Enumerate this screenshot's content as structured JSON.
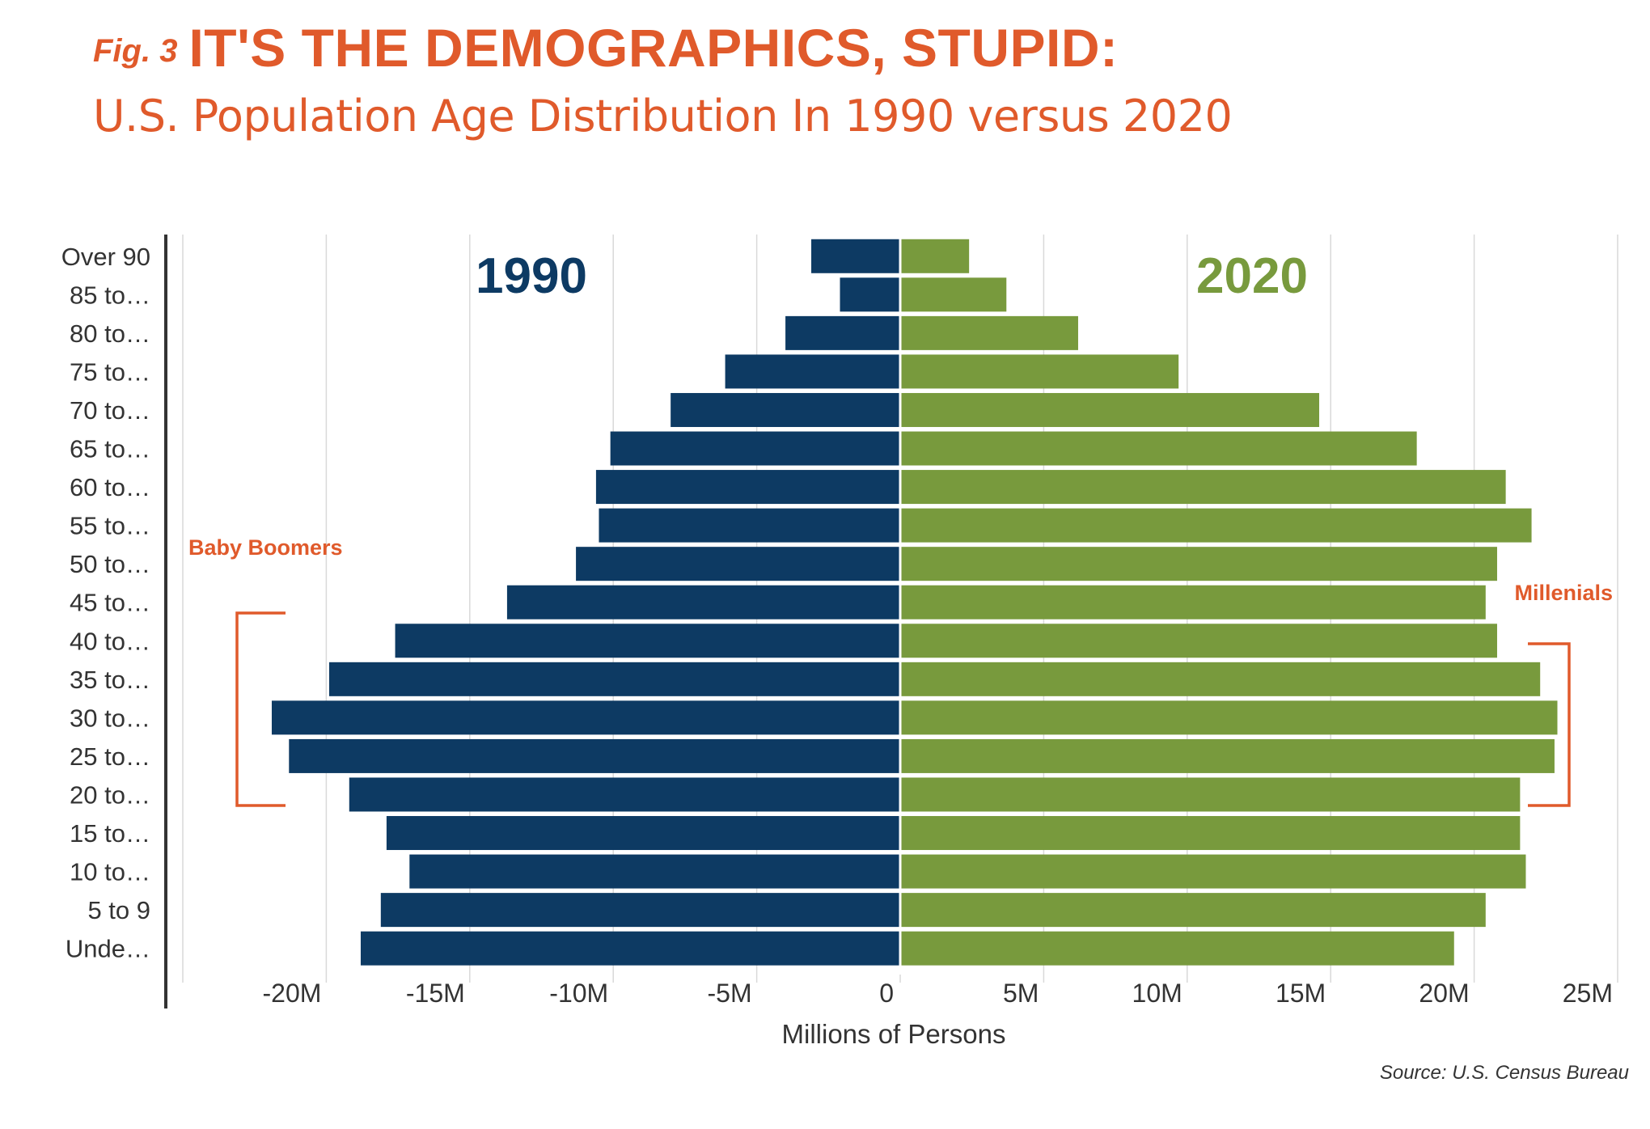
{
  "header": {
    "fig_label": "Fig. 3",
    "title": "IT'S THE DEMOGRAPHICS, STUPID:",
    "subtitle": "U.S. Population Age Distribution In 1990 versus 2020"
  },
  "source": "Source: U.S. Census Bureau",
  "colors": {
    "accent": "#e05a2b",
    "series_1990": "#0d3a63",
    "series_2020": "#789a3d",
    "grid": "#d9d9d9",
    "axis": "#333333"
  },
  "chart_data": {
    "type": "bar",
    "orientation": "horizontal",
    "layout": "population-pyramid",
    "categories": [
      "Over 90",
      "85 to…",
      "80 to…",
      "75 to…",
      "70 to…",
      "65 to…",
      "60 to…",
      "55 to…",
      "50 to…",
      "45 to…",
      "40 to…",
      "35 to…",
      "30 to…",
      "25 to…",
      "20 to…",
      "15 to…",
      "10 to…",
      "5 to 9",
      "Unde…"
    ],
    "series": [
      {
        "name": "1990",
        "color": "#0d3a63",
        "values": [
          -3.1,
          -2.1,
          -4.0,
          -6.1,
          -8.0,
          -10.1,
          -10.6,
          -10.5,
          -11.3,
          -13.7,
          -17.6,
          -19.9,
          -21.9,
          -21.3,
          -19.2,
          -17.9,
          -17.1,
          -18.1,
          -18.8
        ]
      },
      {
        "name": "2020",
        "color": "#789a3d",
        "values": [
          2.4,
          3.7,
          6.2,
          9.7,
          14.6,
          18.0,
          21.1,
          22.0,
          20.8,
          20.4,
          20.8,
          22.3,
          22.9,
          22.8,
          21.6,
          21.6,
          21.8,
          20.4,
          19.3
        ]
      }
    ],
    "xticks": [
      -25,
      -20,
      -15,
      -10,
      -5,
      0,
      5,
      10,
      15,
      20,
      25
    ],
    "xtick_labels": [
      "",
      "-20M",
      "-15M",
      "-10M",
      "-5M",
      "0",
      "5M",
      "10M",
      "15M",
      "20M",
      "25M"
    ],
    "xlim": [
      -25,
      25
    ],
    "xlabel": "Millions of Persons",
    "grid": "vertical",
    "annotations": [
      {
        "text": "Baby Boomers",
        "bracket_from": "40 to…",
        "bracket_to": "20 to…",
        "side": "left"
      },
      {
        "text": "Millenials",
        "bracket_from": "40 to…",
        "bracket_to": "20 to…",
        "side": "right"
      }
    ]
  }
}
